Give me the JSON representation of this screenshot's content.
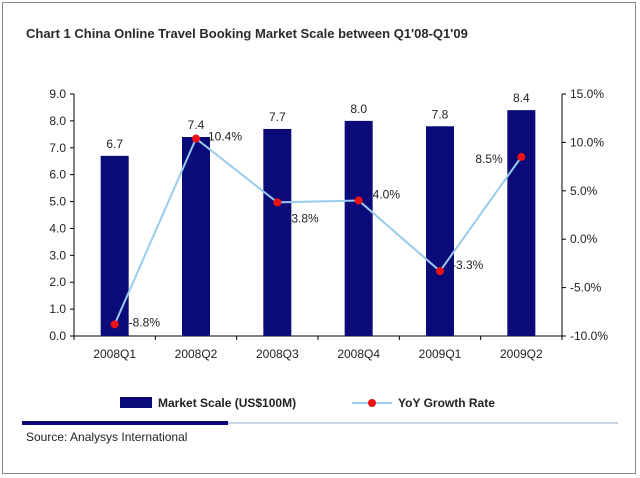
{
  "chart_data": {
    "type": "bar",
    "title": "Chart 1 China Online Travel Booking Market Scale between Q1'08-Q1'09",
    "categories": [
      "2008Q1",
      "2008Q2",
      "2008Q3",
      "2008Q4",
      "2009Q1",
      "2009Q2"
    ],
    "series": [
      {
        "name": "Market Scale (US$100M)",
        "type": "bar",
        "axis": "left",
        "color": "#0a0a78",
        "values": [
          6.7,
          7.4,
          7.7,
          8.0,
          7.8,
          8.4
        ],
        "labels": [
          "6.7",
          "7.4",
          "7.7",
          "8.0",
          "7.8",
          "8.4"
        ]
      },
      {
        "name": "YoY Growth Rate",
        "type": "line",
        "axis": "right",
        "color": "#99ccee",
        "marker_color": "#ee1111",
        "values": [
          -8.8,
          10.4,
          3.8,
          4.0,
          -3.3,
          8.5
        ],
        "labels": [
          "-8.8%",
          "10.4%",
          "3.8%",
          "4.0%",
          "-3.3%",
          "8.5%"
        ]
      }
    ],
    "y_left": {
      "ylim": [
        0,
        9
      ],
      "ticks": [
        "0.0",
        "1.0",
        "2.0",
        "3.0",
        "4.0",
        "5.0",
        "6.0",
        "7.0",
        "8.0",
        "9.0"
      ]
    },
    "y_right": {
      "ylim": [
        -10,
        15
      ],
      "ticks": [
        "-10.0%",
        "-5.0%",
        "0.0%",
        "5.0%",
        "10.0%",
        "15.0%"
      ]
    },
    "grid": false,
    "legend": "bottom",
    "source": "Source: Analysys International"
  }
}
